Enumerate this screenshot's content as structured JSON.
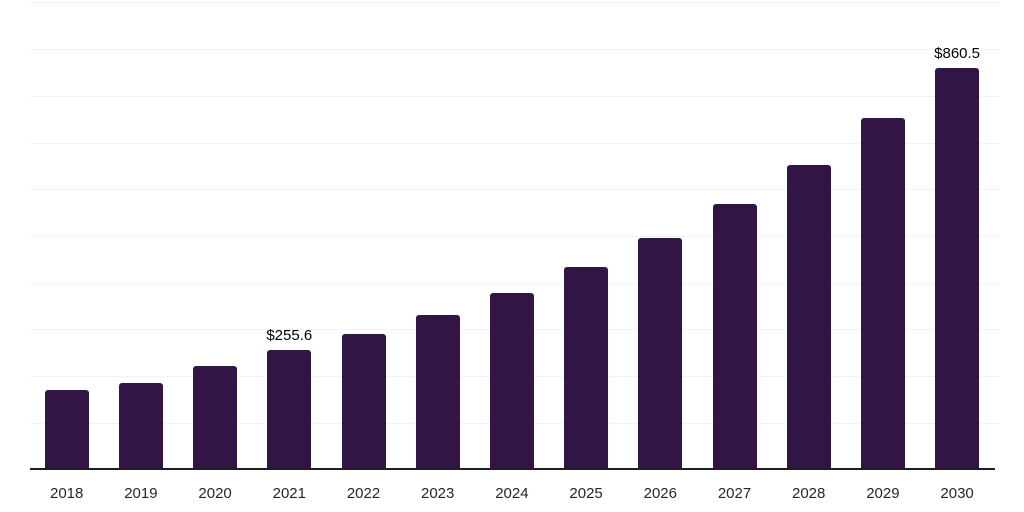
{
  "chart_data": {
    "type": "bar",
    "title": "",
    "xlabel": "",
    "ylabel": "",
    "categories": [
      "2018",
      "2019",
      "2020",
      "2021",
      "2022",
      "2023",
      "2024",
      "2025",
      "2026",
      "2027",
      "2028",
      "2029",
      "2030"
    ],
    "values": [
      171,
      185,
      221,
      255.6,
      290,
      330,
      377,
      434,
      495,
      568,
      652,
      752,
      860.5
    ],
    "data_labels": [
      null,
      null,
      null,
      "$255.6",
      null,
      null,
      null,
      null,
      null,
      null,
      null,
      null,
      "$860.5"
    ],
    "ylim": [
      0,
      1005
    ],
    "grid": {
      "visible": true,
      "interval": 100,
      "max": 1000
    },
    "y_tick_labels_visible": false,
    "legend_position": "none",
    "colors": {
      "bar": "#311545",
      "gridline": "#f2f2f2",
      "axis_line": "#1f1f1f",
      "tick_label": "#262626",
      "data_label": "#000000",
      "background": "#ffffff"
    }
  }
}
